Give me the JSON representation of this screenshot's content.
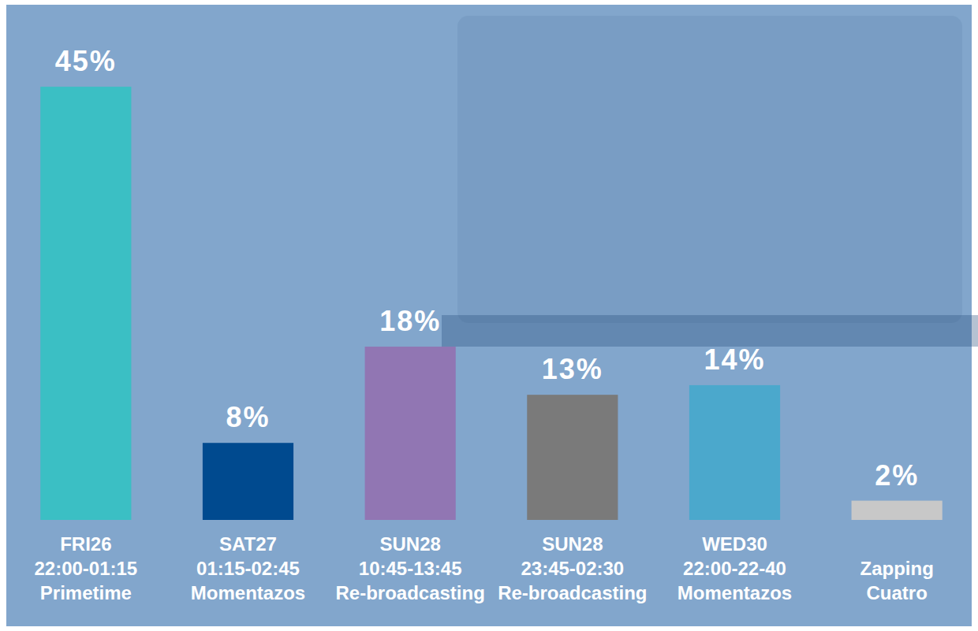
{
  "chart_data": {
    "type": "bar",
    "categories": [
      "FRI26\n22:00-01:15\nPrimetime",
      "SAT27\n01:15-02:45\nMomentazos",
      "SUN28\n10:45-13:45\nRe-broadcasting",
      "SUN28\n23:45-02:30\nRe-broadcasting",
      "WED30\n22:00-22-40\nMomentazos",
      "Zapping\nCuatro"
    ],
    "values": [
      45,
      8,
      18,
      13,
      14,
      2
    ],
    "value_labels": [
      "45%",
      "8%",
      "18%",
      "13%",
      "14%",
      "2%"
    ],
    "colors": [
      "#3bbfc4",
      "#004a8f",
      "#9176b3",
      "#7a7a7a",
      "#4ba8cc",
      "#c8c8c8"
    ],
    "ylim": [
      0,
      50
    ],
    "data_labels": true,
    "tick_labels": false,
    "grid": false
  }
}
